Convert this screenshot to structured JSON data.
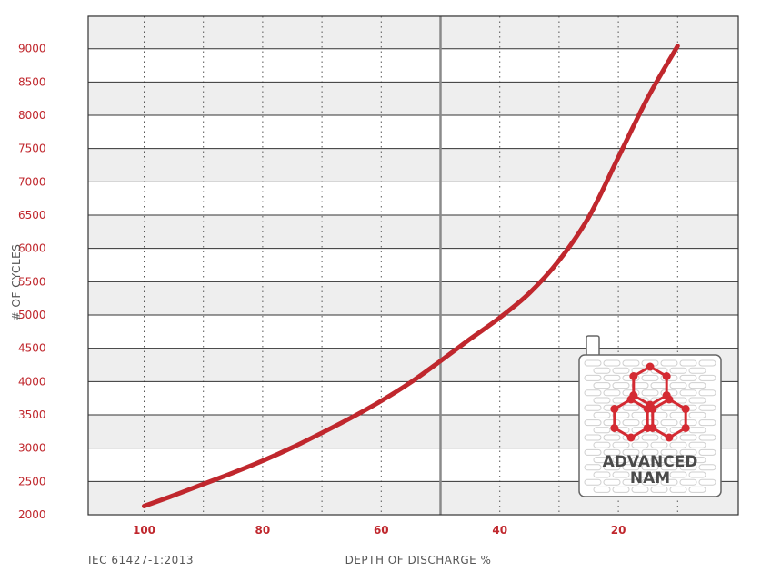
{
  "chart_data": {
    "type": "line",
    "xlabel": "DEPTH OF DISCHARGE %",
    "ylabel": "# OF CYCLES",
    "footnote": "IEC 61427-1:2013",
    "x_reversed": true,
    "xlim": [
      110,
      0
    ],
    "ylim": [
      2000,
      9500
    ],
    "x_ticks": [
      100,
      80,
      60,
      40,
      20
    ],
    "y_ticks": [
      2000,
      2500,
      3000,
      3500,
      4000,
      4500,
      5000,
      5500,
      6000,
      6500,
      7000,
      7500,
      8000,
      8500,
      9000
    ],
    "x_vertical_gridlines": [
      100,
      90,
      80,
      70,
      60,
      40,
      30,
      20,
      10
    ],
    "x_reference_line": 50,
    "grid": true,
    "banded_rows": true,
    "series": [
      {
        "color": "#c0272d",
        "x": [
          100,
          95,
          90,
          85,
          80,
          75,
          70,
          65,
          60,
          55,
          50,
          45,
          40,
          35,
          30,
          25,
          20,
          15,
          10
        ],
        "values": [
          2130,
          2290,
          2460,
          2630,
          2810,
          3010,
          3230,
          3460,
          3710,
          3990,
          4310,
          4640,
          4960,
          5330,
          5820,
          6470,
          7370,
          8270,
          9040
        ]
      }
    ]
  },
  "logo": {
    "line1": "ADVANCED",
    "line2": "NAM",
    "accent_color": "#d42a32"
  },
  "colors": {
    "curve": "#c0272d",
    "tick_labels": "#c0272d",
    "band": "#eeeeee",
    "grid": "#333333"
  }
}
